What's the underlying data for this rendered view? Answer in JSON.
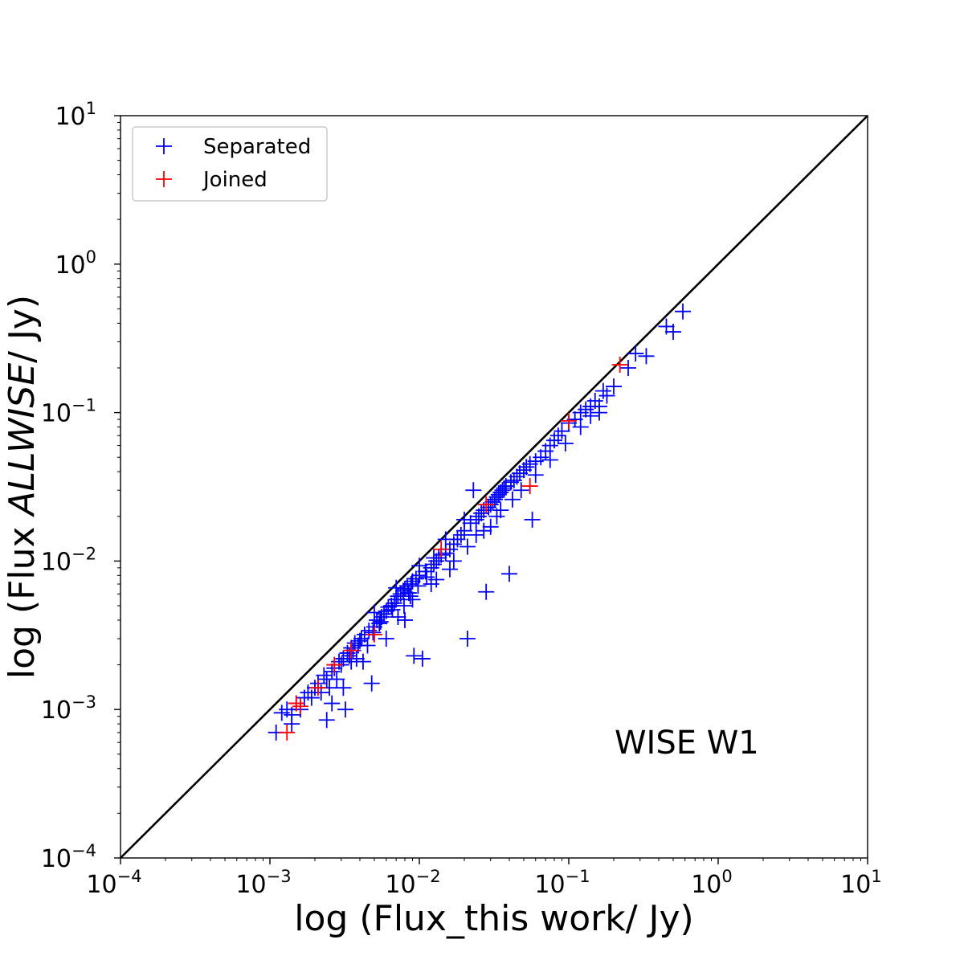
{
  "chart_data": {
    "type": "scatter",
    "xscale": "log",
    "yscale": "log",
    "xlim": [
      0.0001,
      10
    ],
    "ylim": [
      0.0001,
      10
    ],
    "xlabel": "log (Flux_this work/ Jy)",
    "ylabel": {
      "prefix": "log (Flux ",
      "italic": "ALLWISE",
      "suffix": "/ Jy)"
    },
    "x_ticks": [
      {
        "base": "10",
        "exp": "−4"
      },
      {
        "base": "10",
        "exp": "−3"
      },
      {
        "base": "10",
        "exp": "−2"
      },
      {
        "base": "10",
        "exp": "−1"
      },
      {
        "base": "10",
        "exp": "0"
      },
      {
        "base": "10",
        "exp": "1"
      }
    ],
    "y_ticks": [
      {
        "base": "10",
        "exp": "−4"
      },
      {
        "base": "10",
        "exp": "−3"
      },
      {
        "base": "10",
        "exp": "−2"
      },
      {
        "base": "10",
        "exp": "−1"
      },
      {
        "base": "10",
        "exp": "0"
      },
      {
        "base": "10",
        "exp": "1"
      }
    ],
    "annotation": "WISE W1",
    "legend": {
      "placement": "top-left",
      "entries": [
        "Separated",
        "Joined"
      ]
    },
    "reference_line": {
      "from": [
        0.0001,
        0.0001
      ],
      "to": [
        10,
        10
      ],
      "color": "#000000"
    },
    "series": [
      {
        "name": "Separated",
        "color": "#0000ff",
        "marker": "+",
        "points": [
          [
            0.0011,
            0.0007
          ],
          [
            0.0012,
            0.00095
          ],
          [
            0.0013,
            0.001
          ],
          [
            0.0014,
            0.0008
          ],
          [
            0.0014,
            0.00092
          ],
          [
            0.0015,
            0.0011
          ],
          [
            0.0016,
            0.001
          ],
          [
            0.0017,
            0.0012
          ],
          [
            0.0018,
            0.0013
          ],
          [
            0.0019,
            0.0012
          ],
          [
            0.002,
            0.0014
          ],
          [
            0.0021,
            0.0015
          ],
          [
            0.0022,
            0.0013
          ],
          [
            0.0023,
            0.0017
          ],
          [
            0.0024,
            0.00085
          ],
          [
            0.0024,
            0.0016
          ],
          [
            0.0025,
            0.0014
          ],
          [
            0.0026,
            0.0018
          ],
          [
            0.0027,
            0.0019
          ],
          [
            0.0028,
            0.0016
          ],
          [
            0.0029,
            0.0021
          ],
          [
            0.003,
            0.002
          ],
          [
            0.0031,
            0.0022
          ],
          [
            0.0032,
            0.001
          ],
          [
            0.0033,
            0.0024
          ],
          [
            0.0034,
            0.0023
          ],
          [
            0.0035,
            0.0026
          ],
          [
            0.0036,
            0.0025
          ],
          [
            0.0037,
            0.0028
          ],
          [
            0.0038,
            0.0022
          ],
          [
            0.004,
            0.0029
          ],
          [
            0.0041,
            0.003
          ],
          [
            0.0043,
            0.0032
          ],
          [
            0.0045,
            0.0027
          ],
          [
            0.0046,
            0.0034
          ],
          [
            0.0048,
            0.0015
          ],
          [
            0.005,
            0.0036
          ],
          [
            0.0052,
            0.004
          ],
          [
            0.0054,
            0.0038
          ],
          [
            0.0056,
            0.0042
          ],
          [
            0.0058,
            0.0044
          ],
          [
            0.006,
            0.0046
          ],
          [
            0.0062,
            0.0049
          ],
          [
            0.0065,
            0.005
          ],
          [
            0.0068,
            0.0052
          ],
          [
            0.007,
            0.0055
          ],
          [
            0.0072,
            0.0058
          ],
          [
            0.0075,
            0.006
          ],
          [
            0.0078,
            0.0063
          ],
          [
            0.008,
            0.0065
          ],
          [
            0.0083,
            0.0068
          ],
          [
            0.0085,
            0.0061
          ],
          [
            0.0088,
            0.007
          ],
          [
            0.009,
            0.0073
          ],
          [
            0.0092,
            0.0023
          ],
          [
            0.0095,
            0.0076
          ],
          [
            0.01,
            0.008
          ],
          [
            0.0105,
            0.0022
          ],
          [
            0.011,
            0.0085
          ],
          [
            0.012,
            0.009
          ],
          [
            0.0125,
            0.0095
          ],
          [
            0.013,
            0.01
          ],
          [
            0.0135,
            0.0105
          ],
          [
            0.014,
            0.011
          ],
          [
            0.015,
            0.0113
          ],
          [
            0.016,
            0.012
          ],
          [
            0.017,
            0.013
          ],
          [
            0.018,
            0.014
          ],
          [
            0.019,
            0.015
          ],
          [
            0.02,
            0.016
          ],
          [
            0.021,
            0.003
          ],
          [
            0.022,
            0.018
          ],
          [
            0.023,
            0.03
          ],
          [
            0.024,
            0.019
          ],
          [
            0.025,
            0.02
          ],
          [
            0.026,
            0.021
          ],
          [
            0.027,
            0.022
          ],
          [
            0.028,
            0.0062
          ],
          [
            0.029,
            0.023
          ],
          [
            0.03,
            0.024
          ],
          [
            0.031,
            0.025
          ],
          [
            0.032,
            0.026
          ],
          [
            0.033,
            0.027
          ],
          [
            0.034,
            0.028
          ],
          [
            0.035,
            0.029
          ],
          [
            0.036,
            0.03
          ],
          [
            0.037,
            0.031
          ],
          [
            0.038,
            0.032
          ],
          [
            0.04,
            0.0082
          ],
          [
            0.041,
            0.034
          ],
          [
            0.043,
            0.035
          ],
          [
            0.045,
            0.037
          ],
          [
            0.047,
            0.039
          ],
          [
            0.05,
            0.041
          ],
          [
            0.052,
            0.043
          ],
          [
            0.055,
            0.045
          ],
          [
            0.057,
            0.019
          ],
          [
            0.06,
            0.047
          ],
          [
            0.065,
            0.05
          ],
          [
            0.07,
            0.055
          ],
          [
            0.075,
            0.06
          ],
          [
            0.08,
            0.065
          ],
          [
            0.085,
            0.07
          ],
          [
            0.09,
            0.075
          ],
          [
            0.1,
            0.085
          ],
          [
            0.11,
            0.09
          ],
          [
            0.12,
            0.1
          ],
          [
            0.13,
            0.105
          ],
          [
            0.14,
            0.11
          ],
          [
            0.15,
            0.12
          ],
          [
            0.16,
            0.1
          ],
          [
            0.17,
            0.14
          ],
          [
            0.18,
            0.13
          ],
          [
            0.2,
            0.15
          ],
          [
            0.25,
            0.2
          ],
          [
            0.28,
            0.25
          ],
          [
            0.33,
            0.24
          ],
          [
            0.45,
            0.38
          ],
          [
            0.5,
            0.35
          ],
          [
            0.58,
            0.48
          ],
          [
            0.008,
            0.004
          ],
          [
            0.012,
            0.007
          ],
          [
            0.017,
            0.01
          ],
          [
            0.024,
            0.015
          ],
          [
            0.035,
            0.022
          ],
          [
            0.005,
            0.0045
          ],
          [
            0.007,
            0.0066
          ],
          [
            0.01,
            0.0093
          ],
          [
            0.015,
            0.014
          ],
          [
            0.02,
            0.019
          ],
          [
            0.0026,
            0.0011
          ],
          [
            0.0031,
            0.0014
          ],
          [
            0.0042,
            0.0021
          ],
          [
            0.006,
            0.003
          ],
          [
            0.0072,
            0.0042
          ],
          [
            0.009,
            0.0055
          ],
          [
            0.013,
            0.0075
          ],
          [
            0.016,
            0.0088
          ],
          [
            0.021,
            0.0125
          ],
          [
            0.027,
            0.016
          ],
          [
            0.03,
            0.017
          ],
          [
            0.033,
            0.02
          ],
          [
            0.042,
            0.026
          ],
          [
            0.048,
            0.03
          ],
          [
            0.06,
            0.038
          ],
          [
            0.075,
            0.048
          ],
          [
            0.095,
            0.062
          ],
          [
            0.12,
            0.08
          ],
          [
            0.14,
            0.095
          ],
          [
            0.16,
            0.11
          ],
          [
            0.0125,
            0.0105
          ],
          [
            0.0112,
            0.0078
          ],
          [
            0.0098,
            0.0068
          ],
          [
            0.0087,
            0.0058
          ],
          [
            0.0079,
            0.005
          ],
          [
            0.0066,
            0.0047
          ],
          [
            0.0055,
            0.0039
          ],
          [
            0.0049,
            0.0033
          ],
          [
            0.0039,
            0.0027
          ],
          [
            0.0035,
            0.0021
          ]
        ]
      },
      {
        "name": "Joined",
        "color": "#ff0000",
        "marker": "+",
        "points": [
          [
            0.0013,
            0.0007
          ],
          [
            0.0015,
            0.0011
          ],
          [
            0.0016,
            0.00105
          ],
          [
            0.0021,
            0.0014
          ],
          [
            0.0027,
            0.002
          ],
          [
            0.0035,
            0.0025
          ],
          [
            0.005,
            0.0032
          ],
          [
            0.014,
            0.012
          ],
          [
            0.028,
            0.024
          ],
          [
            0.055,
            0.032
          ],
          [
            0.1,
            0.088
          ],
          [
            0.22,
            0.21
          ]
        ]
      }
    ]
  }
}
